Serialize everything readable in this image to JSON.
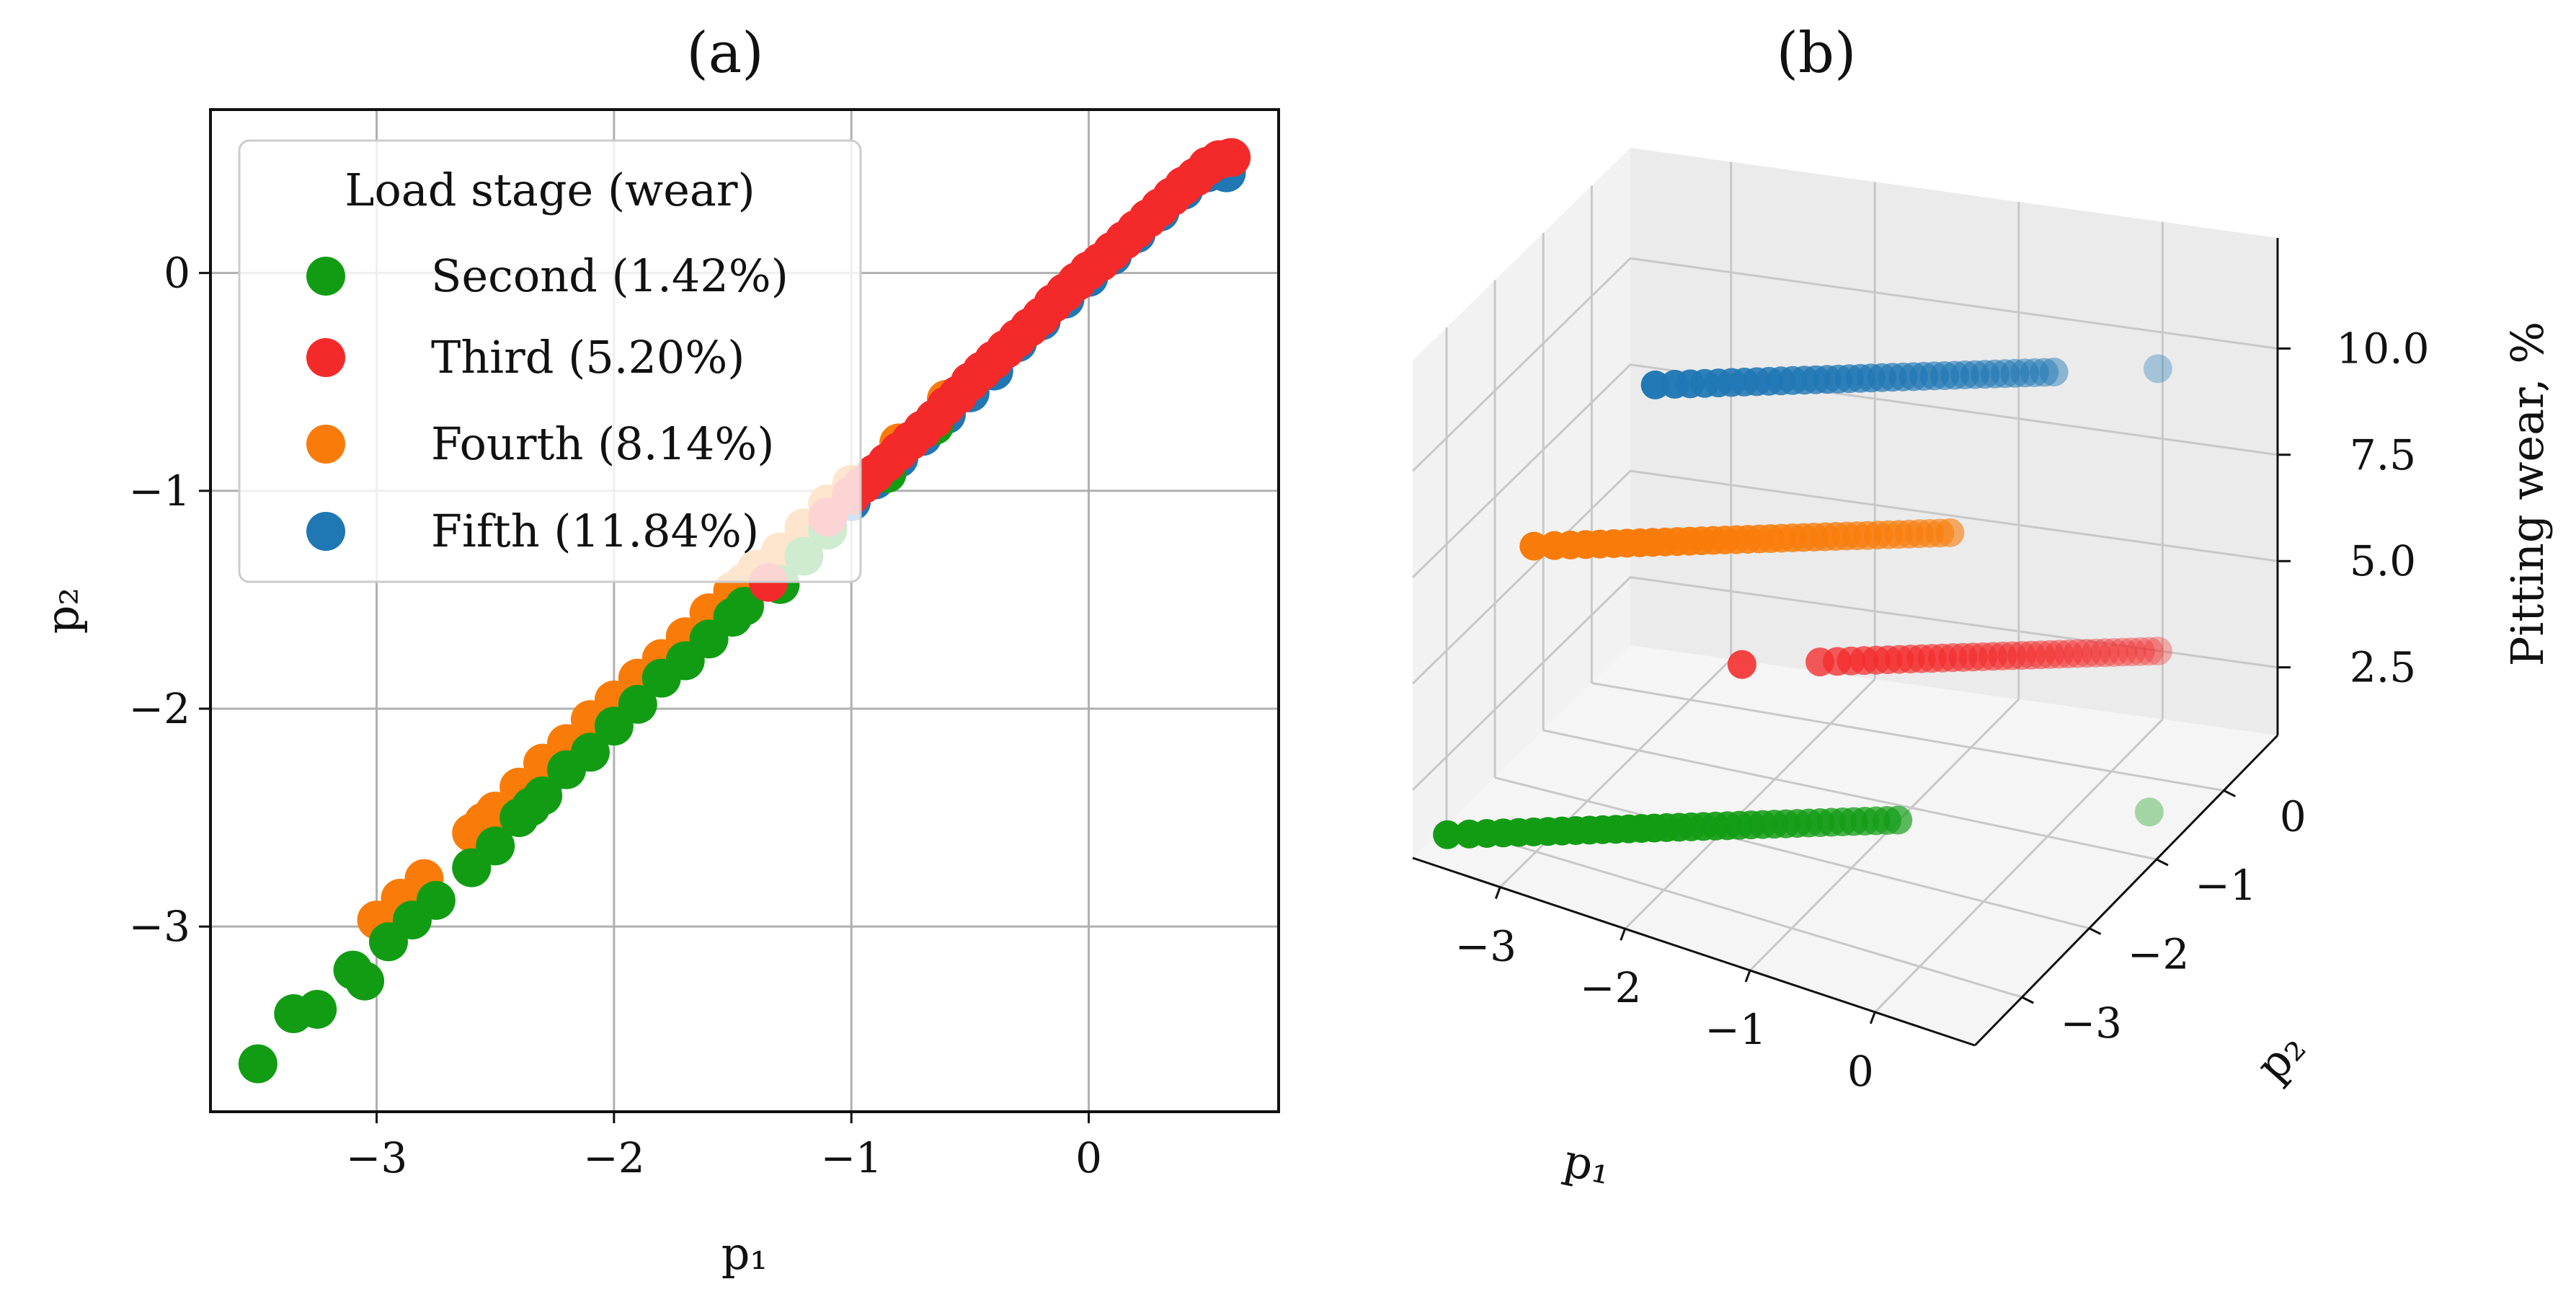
{
  "chart_data": [
    {
      "id": "a",
      "type": "scatter",
      "title": "(a)",
      "xlabel": "p₁",
      "ylabel": "p₂",
      "xlim": [
        -3.7,
        0.8
      ],
      "ylim": [
        -3.85,
        0.75
      ],
      "xticks": [
        -3,
        -2,
        -1,
        0
      ],
      "yticks": [
        -3,
        -2,
        -1,
        0
      ],
      "xtick_labels": [
        "−3",
        "−2",
        "−1",
        "0"
      ],
      "ytick_labels": [
        "−3",
        "−2",
        "−1",
        "0"
      ],
      "grid": true,
      "legend": {
        "title": "Load stage (wear)",
        "placement": "upper-left",
        "entries": [
          {
            "label": "Second (1.42%)",
            "color": "#129c14"
          },
          {
            "label": "Third (5.20%)",
            "color": "#f42a2a"
          },
          {
            "label": "Fourth (8.14%)",
            "color": "#f97c0a"
          },
          {
            "label": "Fifth (11.84%)",
            "color": "#1f77b4"
          }
        ]
      },
      "series": [
        {
          "name": "Fifth (11.84%)",
          "color": "#1f77b4",
          "x": [
            -2.3,
            -2.0,
            -1.8,
            -1.5,
            -1.3,
            -1.1,
            -1.0,
            -0.9,
            -0.8,
            -0.7,
            -0.6,
            -0.5,
            -0.4,
            -0.3,
            -0.2,
            -0.1,
            0.0,
            0.1,
            0.2,
            0.3,
            0.4,
            0.5,
            0.58
          ],
          "y": [
            -2.35,
            -2.05,
            -1.85,
            -1.55,
            -1.35,
            -1.15,
            -1.05,
            -0.95,
            -0.85,
            -0.75,
            -0.65,
            -0.55,
            -0.45,
            -0.32,
            -0.22,
            -0.12,
            -0.02,
            0.08,
            0.18,
            0.28,
            0.38,
            0.46,
            0.46
          ]
        },
        {
          "name": "Fourth (8.14%)",
          "color": "#f97c0a",
          "x": [
            -3.0,
            -2.9,
            -2.8,
            -2.6,
            -2.55,
            -2.5,
            -2.4,
            -2.3,
            -2.2,
            -2.1,
            -2.0,
            -1.9,
            -1.8,
            -1.7,
            -1.6,
            -1.5,
            -1.45,
            -1.4,
            -1.3,
            -1.2,
            -1.1,
            -1.0,
            -0.8,
            -0.6
          ],
          "y": [
            -2.97,
            -2.87,
            -2.78,
            -2.57,
            -2.52,
            -2.47,
            -2.36,
            -2.25,
            -2.16,
            -2.05,
            -1.96,
            -1.86,
            -1.77,
            -1.67,
            -1.56,
            -1.46,
            -1.42,
            -1.36,
            -1.28,
            -1.17,
            -1.06,
            -0.97,
            -0.78,
            -0.58
          ]
        },
        {
          "name": "Second (1.42%)",
          "color": "#129c14",
          "x": [
            -3.5,
            -3.35,
            -3.25,
            -3.1,
            -3.05,
            -2.95,
            -2.85,
            -2.75,
            -2.6,
            -2.5,
            -2.4,
            -2.35,
            -2.3,
            -2.2,
            -2.1,
            -2.0,
            -1.9,
            -1.8,
            -1.7,
            -1.6,
            -1.5,
            -1.45,
            -1.3,
            -1.2,
            -1.1,
            -0.85,
            -0.65
          ],
          "y": [
            -3.63,
            -3.4,
            -3.38,
            -3.2,
            -3.25,
            -3.07,
            -2.97,
            -2.88,
            -2.73,
            -2.63,
            -2.5,
            -2.45,
            -2.4,
            -2.28,
            -2.2,
            -2.08,
            -1.98,
            -1.86,
            -1.78,
            -1.68,
            -1.58,
            -1.53,
            -1.43,
            -1.3,
            -1.18,
            -0.92,
            -0.7
          ]
        },
        {
          "name": "Third (5.20%)",
          "color": "#f42a2a",
          "x": [
            -1.35,
            -1.1,
            -1.0,
            -0.95,
            -0.9,
            -0.85,
            -0.8,
            -0.75,
            -0.7,
            -0.65,
            -0.6,
            -0.55,
            -0.5,
            -0.45,
            -0.4,
            -0.35,
            -0.3,
            -0.25,
            -0.2,
            -0.15,
            -0.1,
            -0.05,
            0.0,
            0.05,
            0.1,
            0.15,
            0.2,
            0.25,
            0.3,
            0.35,
            0.4,
            0.45,
            0.5,
            0.55,
            0.6
          ],
          "y": [
            -1.42,
            -1.12,
            -1.02,
            -0.97,
            -0.92,
            -0.87,
            -0.82,
            -0.77,
            -0.72,
            -0.67,
            -0.61,
            -0.56,
            -0.5,
            -0.45,
            -0.4,
            -0.35,
            -0.3,
            -0.25,
            -0.2,
            -0.14,
            -0.09,
            -0.04,
            0.01,
            0.05,
            0.1,
            0.15,
            0.2,
            0.25,
            0.3,
            0.35,
            0.4,
            0.44,
            0.49,
            0.52,
            0.53
          ]
        }
      ]
    },
    {
      "id": "b",
      "type": "scatter3d",
      "title": "(b)",
      "xlabel": "p₁",
      "ylabel": "p₂",
      "zlabel": "Pitting wear, %",
      "xlim": [
        -3.7,
        0.8
      ],
      "ylim": [
        -3.7,
        0.8
      ],
      "zlim": [
        0.9,
        12.6
      ],
      "xticks": [
        -3,
        -2,
        -1,
        0
      ],
      "yticks": [
        -3,
        -2,
        -1,
        0
      ],
      "zticks": [
        2.5,
        5.0,
        7.5,
        10.0
      ],
      "xtick_labels": [
        "−3",
        "−2",
        "−1",
        "0"
      ],
      "ytick_labels": [
        "−3",
        "−2",
        "−1",
        "0"
      ],
      "ztick_labels": [
        "2.5",
        "5.0",
        "7.5",
        "10.0"
      ],
      "grid": true,
      "series": [
        {
          "name": "Second (1.42%)",
          "color": "#129c14",
          "z": 1.42,
          "p_start": -3.5,
          "p_end": -0.9,
          "count": 36,
          "outlier": 0.55
        },
        {
          "name": "Third (5.20%)",
          "color": "#f42a2a",
          "z": 5.2,
          "p_start": -1.35,
          "p_end": 0.6,
          "count": 34,
          "isolated": -1.8
        },
        {
          "name": "Fourth (8.14%)",
          "color": "#f97c0a",
          "z": 8.14,
          "p_start": -3.0,
          "p_end": -0.6,
          "count": 36
        },
        {
          "name": "Fifth (11.84%)",
          "color": "#1f77b4",
          "z": 11.84,
          "p_start": -2.3,
          "p_end": 0.0,
          "count": 36,
          "outlier": 0.6
        }
      ]
    }
  ]
}
